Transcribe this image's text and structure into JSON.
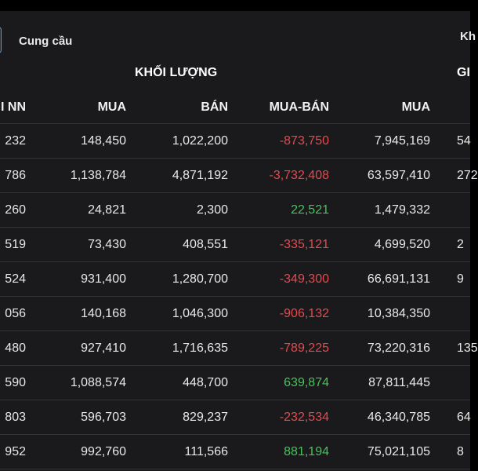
{
  "tabs": {
    "active_label": "Cung cầu",
    "right_label": "Kh"
  },
  "groups": {
    "volume_title": "KHỐI LƯỢNG",
    "value_title": "GI"
  },
  "columns": [
    "I NN",
    "MUA",
    "BÁN",
    "MUA-BÁN",
    "MUA",
    ""
  ],
  "rows": [
    {
      "c0": "232",
      "c1": "148,450",
      "c2": "1,022,200",
      "c3": "-873,750",
      "c3_sign": "neg",
      "c4": "7,945,169",
      "c5": "54"
    },
    {
      "c0": "786",
      "c1": "1,138,784",
      "c2": "4,871,192",
      "c3": "-3,732,408",
      "c3_sign": "neg",
      "c4": "63,597,410",
      "c5": "272"
    },
    {
      "c0": "260",
      "c1": "24,821",
      "c2": "2,300",
      "c3": "22,521",
      "c3_sign": "pos",
      "c4": "1,479,332",
      "c5": ""
    },
    {
      "c0": "519",
      "c1": "73,430",
      "c2": "408,551",
      "c3": "-335,121",
      "c3_sign": "neg",
      "c4": "4,699,520",
      "c5": "2"
    },
    {
      "c0": "524",
      "c1": "931,400",
      "c2": "1,280,700",
      "c3": "-349,300",
      "c3_sign": "neg",
      "c4": "66,691,131",
      "c5": "9"
    },
    {
      "c0": "056",
      "c1": "140,168",
      "c2": "1,046,300",
      "c3": "-906,132",
      "c3_sign": "neg",
      "c4": "10,384,350",
      "c5": ""
    },
    {
      "c0": "480",
      "c1": "927,410",
      "c2": "1,716,635",
      "c3": "-789,225",
      "c3_sign": "neg",
      "c4": "73,220,316",
      "c5": "135"
    },
    {
      "c0": "590",
      "c1": "1,088,574",
      "c2": "448,700",
      "c3": "639,874",
      "c3_sign": "pos",
      "c4": "87,811,445",
      "c5": ""
    },
    {
      "c0": "803",
      "c1": "596,703",
      "c2": "829,237",
      "c3": "-232,534",
      "c3_sign": "neg",
      "c4": "46,340,785",
      "c5": "64"
    },
    {
      "c0": "952",
      "c1": "992,760",
      "c2": "111,566",
      "c3": "881,194",
      "c3_sign": "pos",
      "c4": "75,021,105",
      "c5": "8"
    }
  ],
  "colors": {
    "negative": "#e5484d",
    "positive": "#46c25a",
    "background": "#1a1a1c"
  }
}
